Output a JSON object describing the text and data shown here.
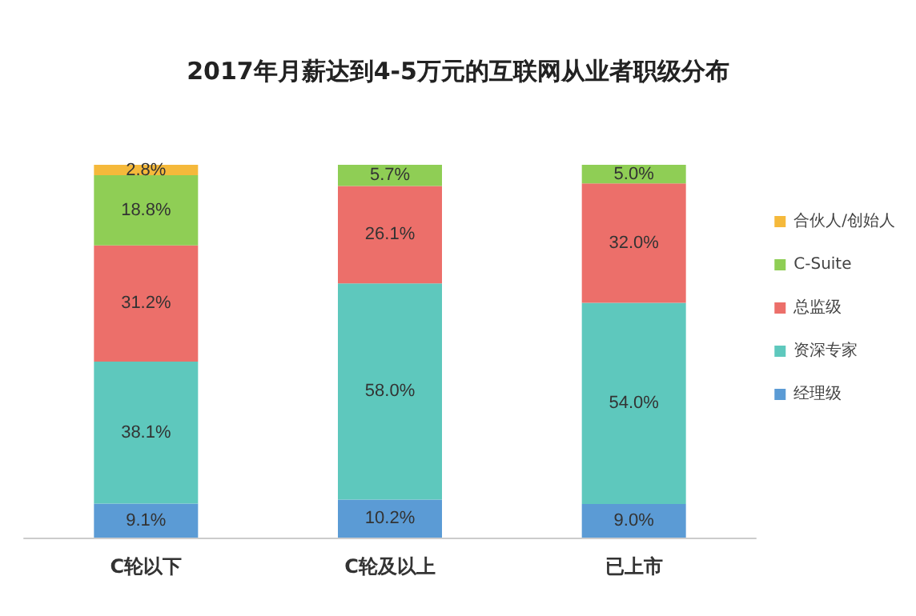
{
  "chart_data": {
    "type": "bar",
    "title": "2017年月薪达到4-5万元的互联网从业者职级分布",
    "stacked": true,
    "data_labels": true,
    "legend": "right",
    "categories": [
      "C轮以下",
      "C轮及以上",
      "已上市"
    ],
    "series": [
      {
        "name": "经理级",
        "color": "#5b9bd5",
        "values": [
          9.1,
          10.2,
          9.0
        ],
        "value_labels": [
          "9.1%",
          "10.2%",
          "9.0%"
        ]
      },
      {
        "name": "资深专家",
        "color": "#5ec8bd",
        "values": [
          38.1,
          58.0,
          54.0
        ],
        "value_labels": [
          "38.1%",
          "58.0%",
          "54.0%"
        ]
      },
      {
        "name": "总监级",
        "color": "#ec6f6a",
        "values": [
          31.2,
          26.1,
          32.0
        ],
        "value_labels": [
          "31.2%",
          "26.1%",
          "32.0%"
        ]
      },
      {
        "name": "C-Suite",
        "color": "#8fce55",
        "values": [
          18.8,
          5.7,
          5.0
        ],
        "value_labels": [
          "18.8%",
          "5.7%",
          "5.0%"
        ]
      },
      {
        "name": "合伙人/创始人",
        "color": "#f5b93b",
        "values": [
          2.8,
          null,
          null
        ],
        "value_labels": [
          "2.8%",
          null,
          null
        ]
      }
    ]
  }
}
